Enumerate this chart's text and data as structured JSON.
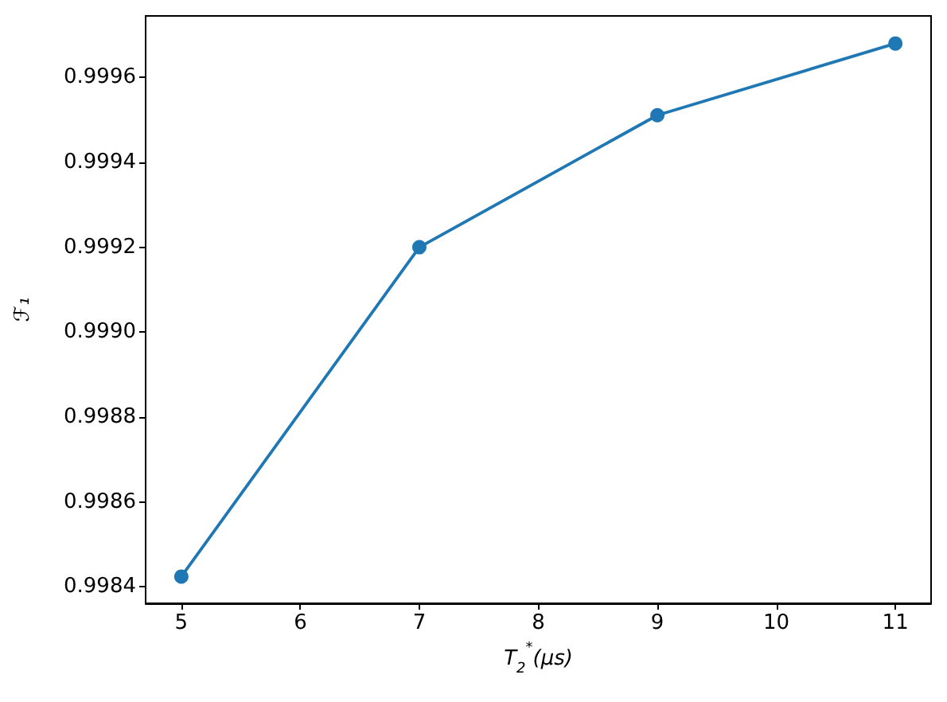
{
  "chart_data": {
    "type": "line",
    "xlabel": "T$_{2}$$^{*}$(μs)",
    "ylabel": "ℱ₁",
    "x": [
      5,
      7,
      9,
      11
    ],
    "values": [
      0.998424,
      0.9992,
      0.999511,
      0.99968
    ],
    "color": "#1f77b4",
    "marker": "circle",
    "line_style": "solid",
    "xlim": [
      4.7,
      11.3
    ],
    "xticks": [
      5,
      6,
      7,
      8,
      9,
      10,
      11
    ],
    "ylim": [
      0.998361,
      0.999745
    ],
    "yticks": [
      0.9984,
      0.9986,
      0.9988,
      {
        "value": 0.999,
        "label": "0.9990"
      },
      0.9992,
      0.9994,
      0.9996
    ]
  }
}
